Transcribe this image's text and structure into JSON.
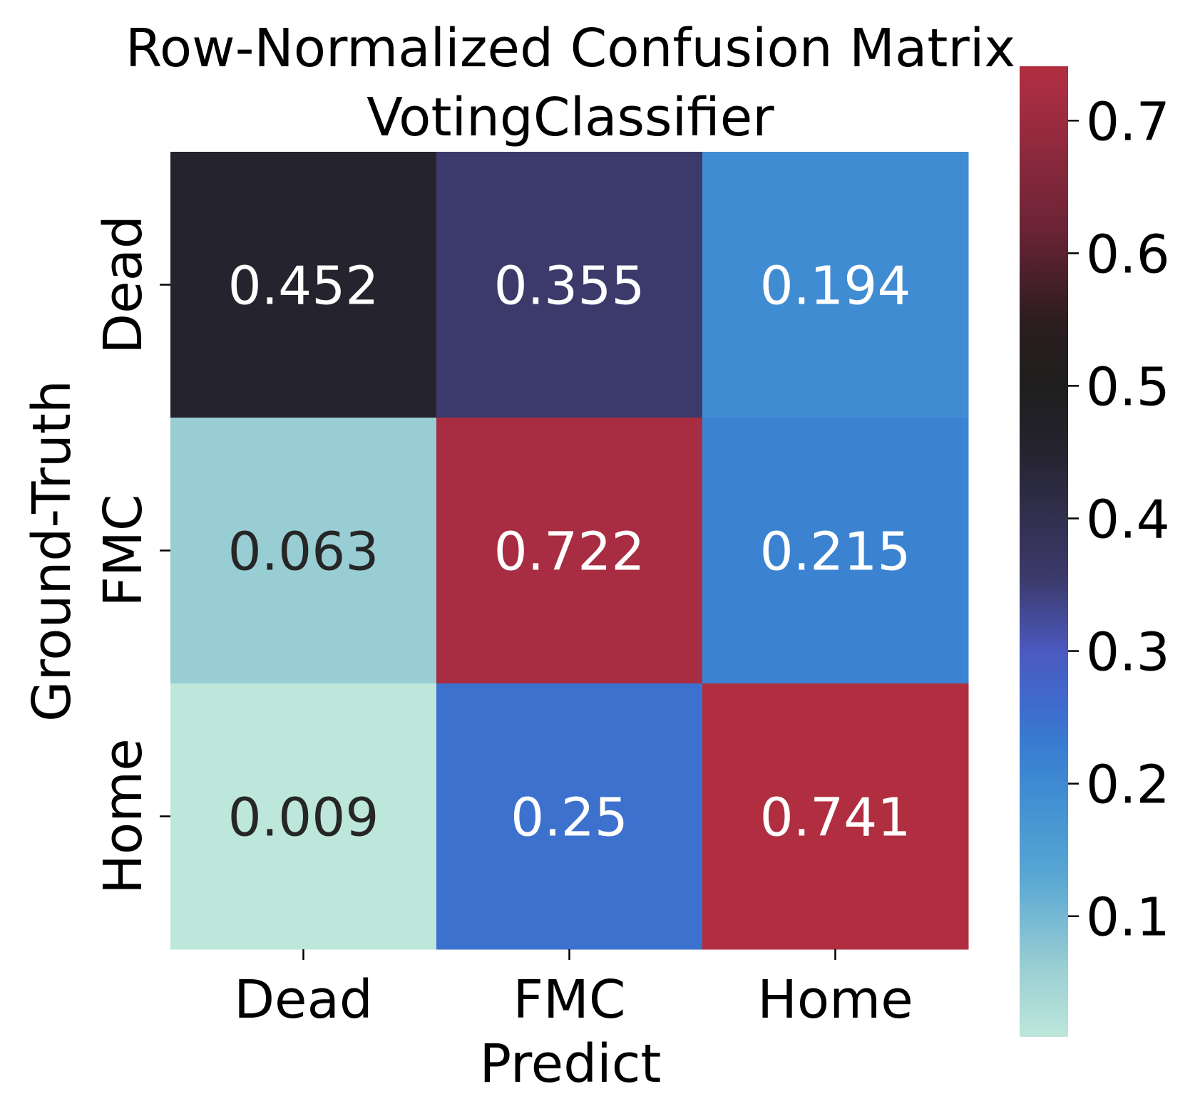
{
  "chart_data": {
    "type": "heatmap",
    "title_lines": [
      "Row-Normalized Confusion Matrix",
      "VotingClassifier"
    ],
    "xlabel": "Predict",
    "ylabel": "Ground-Truth",
    "x_categories": [
      "Dead",
      "FMC",
      "Home"
    ],
    "y_categories": [
      "Dead",
      "FMC",
      "Home"
    ],
    "values": [
      [
        0.452,
        0.355,
        0.194
      ],
      [
        0.063,
        0.722,
        0.215
      ],
      [
        0.009,
        0.25,
        0.741
      ]
    ],
    "cell_labels": [
      [
        "0.452",
        "0.355",
        "0.194"
      ],
      [
        "0.063",
        "0.722",
        "0.215"
      ],
      [
        "0.009",
        "0.25",
        "0.741"
      ]
    ],
    "colorbar": {
      "range": [
        0.009,
        0.741
      ],
      "ticks": [
        0.1,
        0.2,
        0.3,
        0.4,
        0.5,
        0.6,
        0.7
      ],
      "tick_labels": [
        "0.1",
        "0.2",
        "0.3",
        "0.4",
        "0.5",
        "0.6",
        "0.7"
      ],
      "colormap": "icefire",
      "colormap_stops": [
        {
          "v": 0.009,
          "color": "#bde7db"
        },
        {
          "v": 0.06,
          "color": "#9bcfd3"
        },
        {
          "v": 0.13,
          "color": "#58a7d3"
        },
        {
          "v": 0.19,
          "color": "#418ed2"
        },
        {
          "v": 0.23,
          "color": "#387cd0"
        },
        {
          "v": 0.26,
          "color": "#3f6bcd"
        },
        {
          "v": 0.3,
          "color": "#4b59bf"
        },
        {
          "v": 0.355,
          "color": "#3c3a6b"
        },
        {
          "v": 0.452,
          "color": "#25232e"
        },
        {
          "v": 0.5,
          "color": "#1f1e1e"
        },
        {
          "v": 0.55,
          "color": "#2c1d1f"
        },
        {
          "v": 0.62,
          "color": "#6c2436"
        },
        {
          "v": 0.722,
          "color": "#a82d42"
        },
        {
          "v": 0.741,
          "color": "#b02e3f"
        }
      ],
      "annotation_dark_below": 0.1
    },
    "annotation_colors": {
      "light": "#ffffff",
      "dark": "#262626"
    }
  }
}
